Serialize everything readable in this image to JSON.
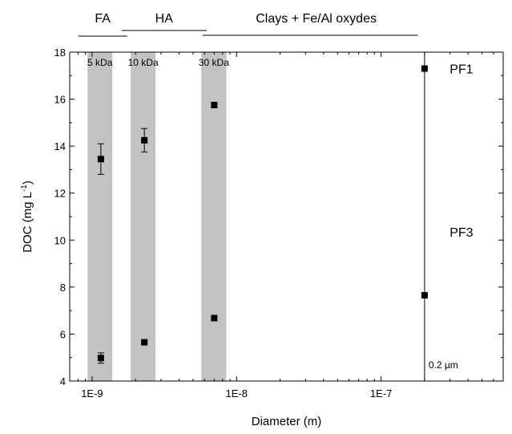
{
  "chart_data": {
    "type": "scatter",
    "xscale": "log",
    "xlim": [
      7e-10,
      7e-07
    ],
    "ylim": [
      4,
      18
    ],
    "xlabel": "Diameter (m)",
    "ylabel": "DOC (mg L-1)",
    "ylabel_parts": {
      "main": "DOC (mg L",
      "sup": "-1",
      "close": ")"
    },
    "x_ticks": [
      {
        "value": 1e-09,
        "label": "1E-9"
      },
      {
        "value": 1e-08,
        "label": "1E-8"
      },
      {
        "value": 1e-07,
        "label": "1E-7"
      }
    ],
    "y_ticks": [
      {
        "value": 4,
        "label": "4"
      },
      {
        "value": 6,
        "label": "6"
      },
      {
        "value": 8,
        "label": "8"
      },
      {
        "value": 10,
        "label": "10"
      },
      {
        "value": 12,
        "label": "12"
      },
      {
        "value": 14,
        "label": "14"
      },
      {
        "value": 16,
        "label": "16"
      },
      {
        "value": 18,
        "label": "18"
      }
    ],
    "bands": [
      {
        "label": "5 kDa",
        "x0": 9.3e-10,
        "x1": 1.38e-09
      },
      {
        "label": "10 kDa",
        "x0": 1.85e-09,
        "x1": 2.75e-09
      },
      {
        "label": "30 kDa",
        "x0": 5.7e-09,
        "x1": 8.5e-09
      }
    ],
    "series": [
      {
        "name": "PF1",
        "points": [
          {
            "x": 1.15e-09,
            "y": 13.45,
            "err": 0.65
          },
          {
            "x": 2.3e-09,
            "y": 14.25,
            "err": 0.5
          },
          {
            "x": 7e-09,
            "y": 15.75,
            "err": 0
          },
          {
            "x": 2e-07,
            "y": 17.3,
            "err": 0
          }
        ]
      },
      {
        "name": "PF3",
        "points": [
          {
            "x": 1.15e-09,
            "y": 4.98,
            "err": 0.22
          },
          {
            "x": 2.3e-09,
            "y": 5.65,
            "err": 0
          },
          {
            "x": 7e-09,
            "y": 6.68,
            "err": 0
          },
          {
            "x": 2e-07,
            "y": 7.65,
            "err": 0
          }
        ]
      }
    ],
    "vline": {
      "x": 2e-07,
      "label": "0.2 µm"
    },
    "series_labels": [
      {
        "text": "PF1",
        "x": 3.6e-07,
        "y": 17.3
      },
      {
        "text": "PF3",
        "x": 3.6e-07,
        "y": 10.35
      }
    ],
    "regions": [
      {
        "label": "FA",
        "x0": 8e-10,
        "x1": 1.75e-09
      },
      {
        "label": "HA",
        "x0": 1.6e-09,
        "x1": 6.2e-09
      },
      {
        "label": "Clays + Fe/Al oxydes",
        "x0": 5.8e-09,
        "x1": 1.8e-07
      }
    ]
  }
}
